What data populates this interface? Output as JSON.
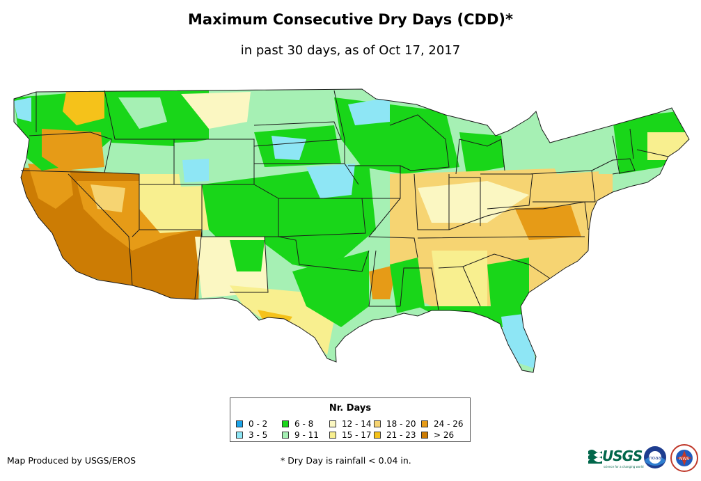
{
  "title": "Maximum Consecutive Dry Days (CDD)*",
  "subtitle": "in past 30 days, as of Oct 17, 2017",
  "legend": {
    "title": "Nr. Days",
    "items": [
      {
        "label": "0 - 2",
        "color": "#1aa3e8"
      },
      {
        "label": "3 - 5",
        "color": "#8ee6f5"
      },
      {
        "label": "6 - 8",
        "color": "#19d619"
      },
      {
        "label": "9 - 11",
        "color": "#a6f0b4"
      },
      {
        "label": "12 - 14",
        "color": "#fbf7c2"
      },
      {
        "label": "15 - 17",
        "color": "#f8ef8f"
      },
      {
        "label": "18 - 20",
        "color": "#f6d472"
      },
      {
        "label": "21 - 23",
        "color": "#f5c21a"
      },
      {
        "label": "24 - 26",
        "color": "#e69b17"
      },
      {
        "label": "> 26",
        "color": "#cc7c04"
      }
    ]
  },
  "credit": "Map Produced by USGS/EROS",
  "footnote": "* Dry Day is rainfall < 0.04 in.",
  "logos": {
    "usgs": "USGS",
    "usgs_tagline": "science for a changing world",
    "noaa": "noaa",
    "nws": "NWS"
  }
}
